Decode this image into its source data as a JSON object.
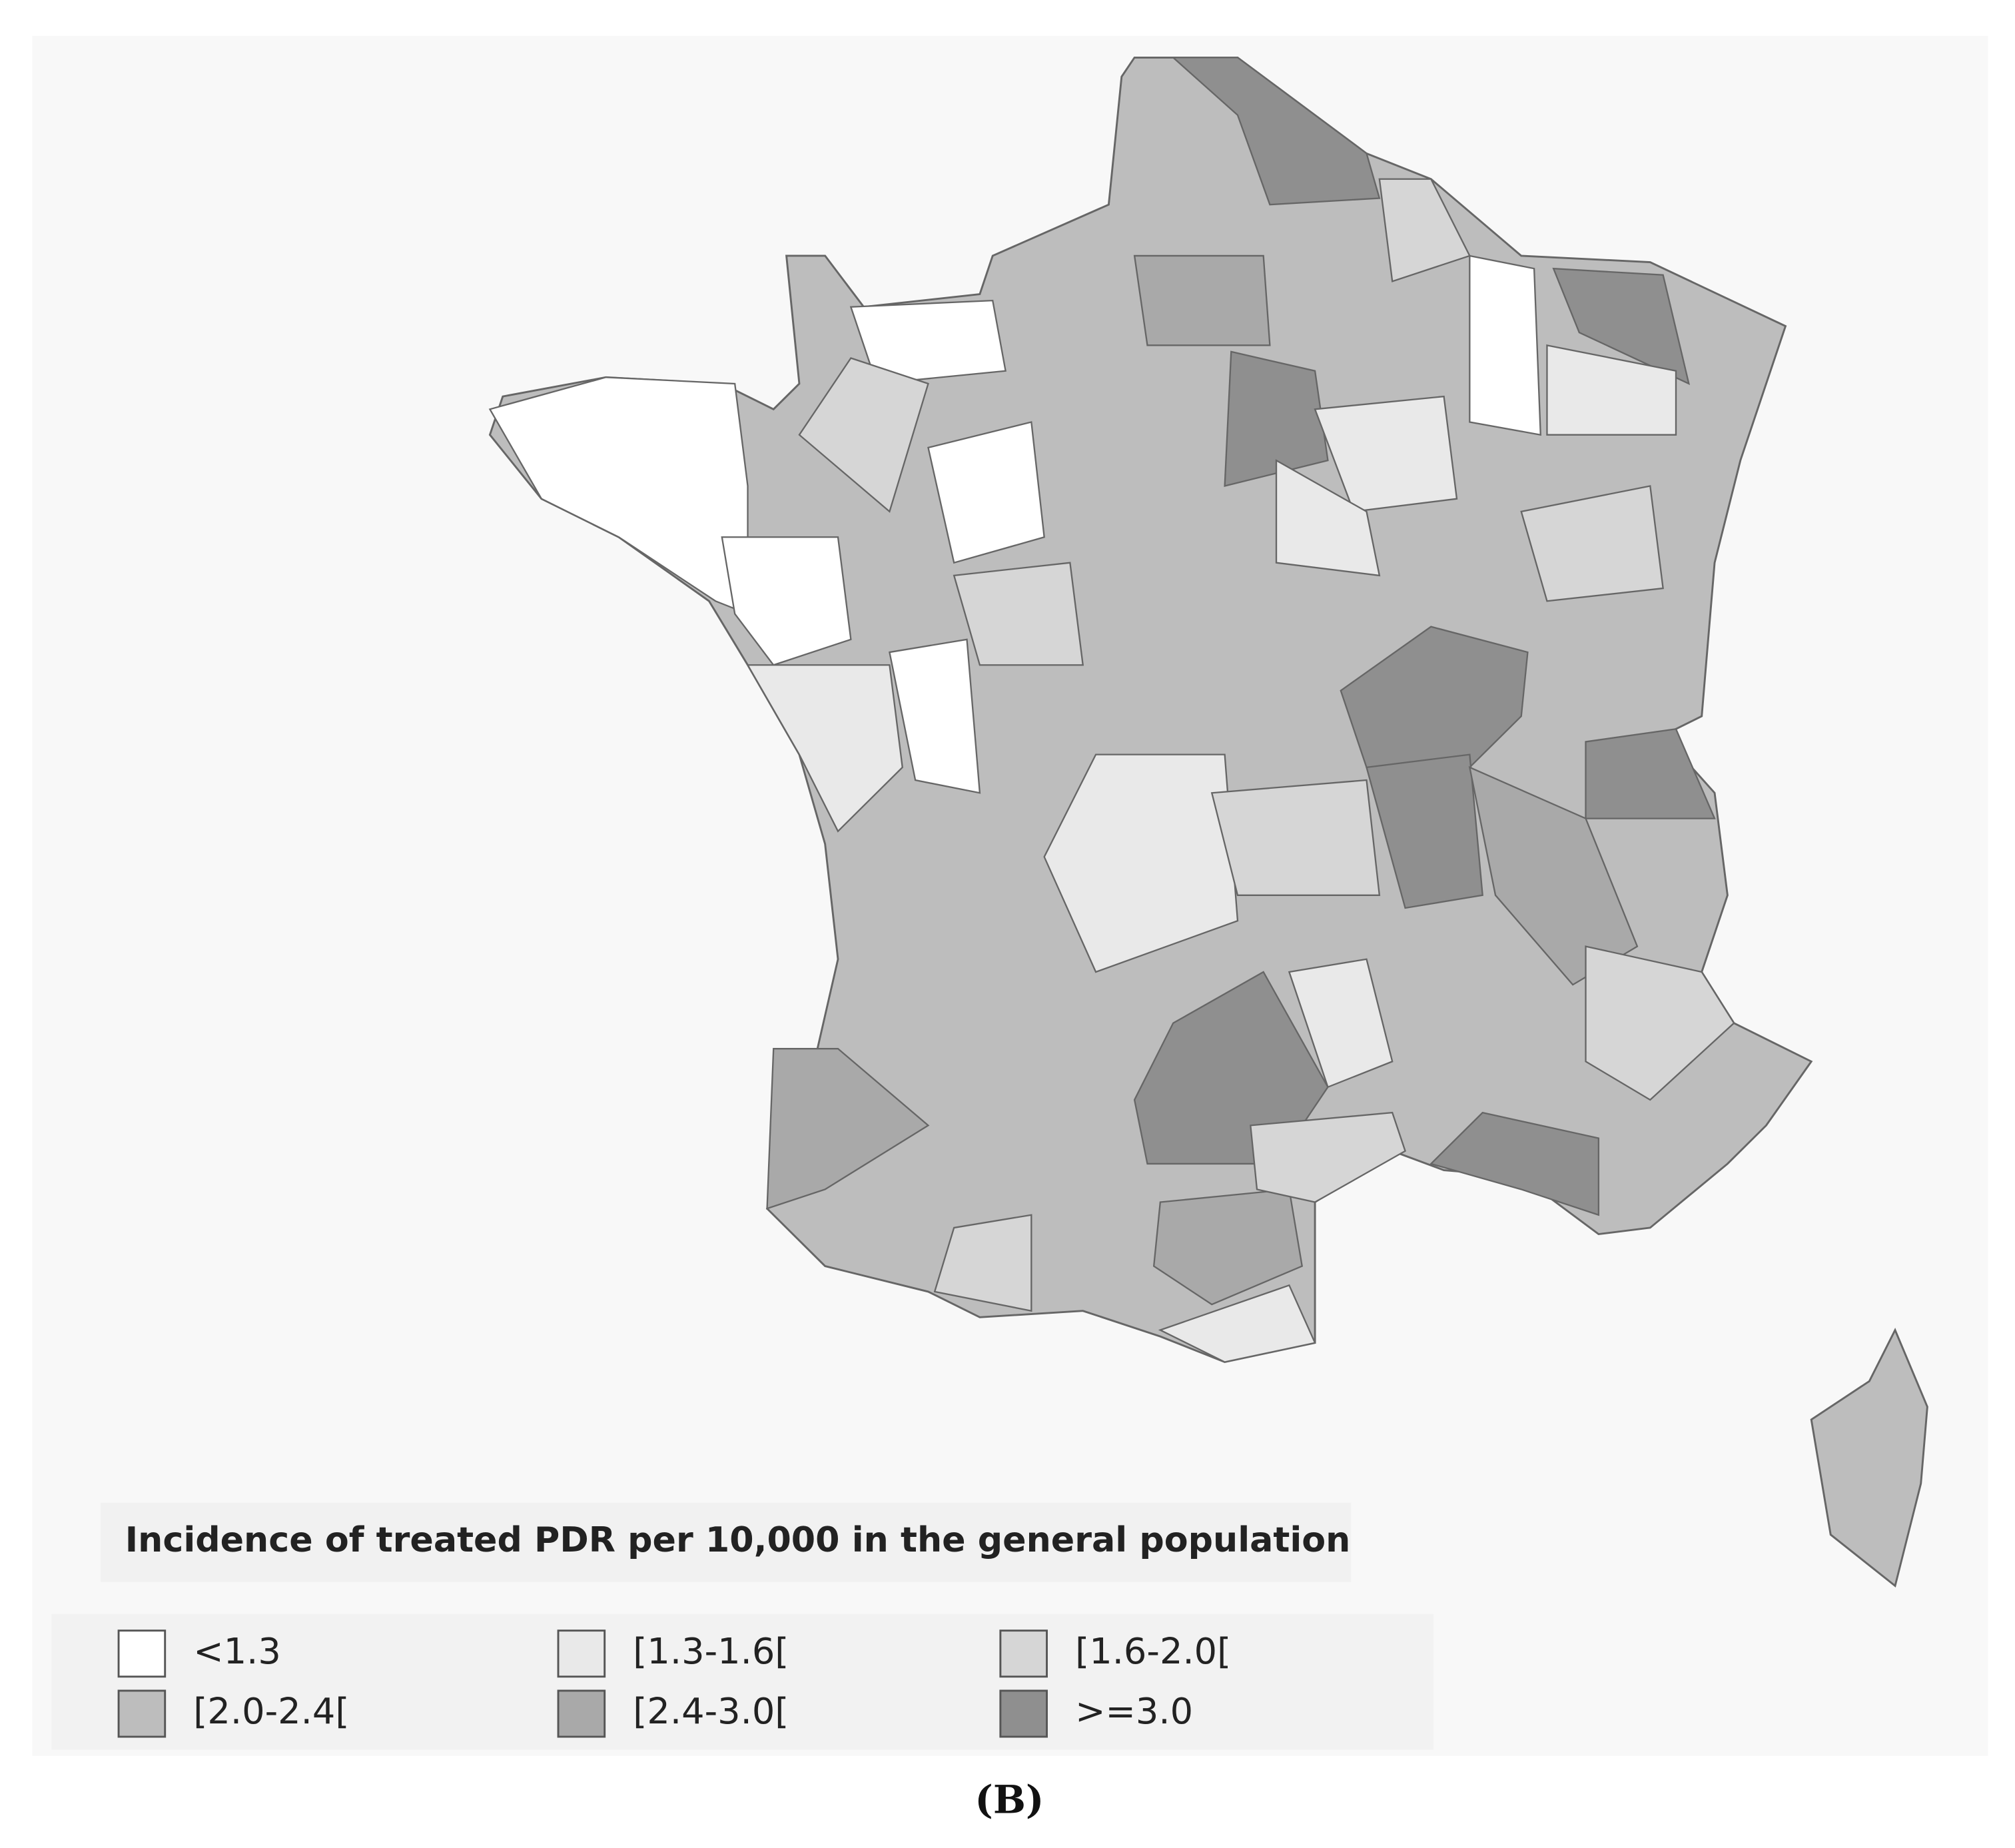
{
  "title": "Incidence of treated PDR per 10,000 in the general population",
  "legend": [
    {
      "label": "<1.3",
      "color": "#ffffff"
    },
    {
      "label": "[1.3-1.6[",
      "color": "#e9e9e9"
    },
    {
      "label": "[1.6-2.0[",
      "color": "#d6d6d6"
    },
    {
      "label": "[2.0-2.4[",
      "color": "#bdbdbd"
    },
    {
      "label": "[2.4-3.0[",
      "color": "#a9a9a9"
    },
    {
      "label": ">=3.0",
      "color": "#8f8f8f"
    }
  ],
  "caption": "(B)"
}
